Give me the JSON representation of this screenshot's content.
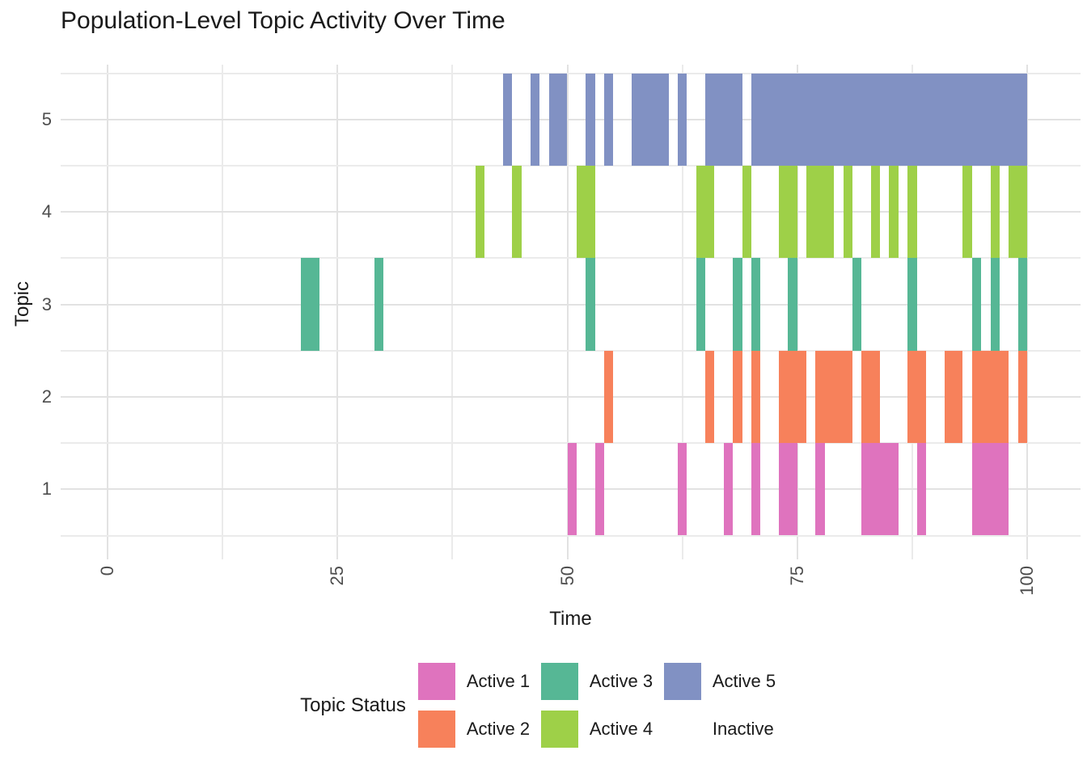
{
  "title": "Population-Level Topic Activity Over Time",
  "x_axis": {
    "label": "Time",
    "ticks": [
      "0",
      "25",
      "50",
      "75",
      "100"
    ]
  },
  "y_axis": {
    "label": "Topic",
    "ticks": [
      "1",
      "2",
      "3",
      "4",
      "5"
    ]
  },
  "legend": {
    "title": "Topic Status",
    "items": [
      {
        "label": "Active 1",
        "color": "#df73be"
      },
      {
        "label": "Active 2",
        "color": "#f7815b"
      },
      {
        "label": "Active 3",
        "color": "#56b795"
      },
      {
        "label": "Active 4",
        "color": "#9ed048"
      },
      {
        "label": "Active 5",
        "color": "#8191c3"
      },
      {
        "label": "Inactive",
        "color": "none"
      }
    ]
  },
  "chart_data": {
    "type": "timeline",
    "title": "Population-Level Topic Activity Over Time",
    "xlabel": "Time",
    "ylabel": "Topic",
    "xlim": [
      0,
      100
    ],
    "x_major_ticks": [
      0,
      25,
      50,
      75,
      100
    ],
    "y_major_ticks": [
      1,
      2,
      3,
      4,
      5
    ],
    "grid": "major and minor, light grey on white",
    "legend_position": "bottom",
    "legend_title": "Topic Status",
    "inactive_label": "Inactive",
    "topics": [
      {
        "topic": 1,
        "status_label": "Active 1",
        "color": "#df73be",
        "active_intervals": [
          [
            50,
            51
          ],
          [
            53,
            54
          ],
          [
            62,
            63
          ],
          [
            67,
            68
          ],
          [
            70,
            71
          ],
          [
            73,
            75
          ],
          [
            77,
            78
          ],
          [
            82,
            86
          ],
          [
            88,
            89
          ],
          [
            94,
            98
          ]
        ]
      },
      {
        "topic": 2,
        "status_label": "Active 2",
        "color": "#f7815b",
        "active_intervals": [
          [
            54,
            55
          ],
          [
            65,
            66
          ],
          [
            68,
            69
          ],
          [
            70,
            71
          ],
          [
            73,
            76
          ],
          [
            77,
            81
          ],
          [
            82,
            84
          ],
          [
            87,
            89
          ],
          [
            91,
            93
          ],
          [
            94,
            98
          ],
          [
            99,
            100
          ]
        ]
      },
      {
        "topic": 3,
        "status_label": "Active 3",
        "color": "#56b795",
        "active_intervals": [
          [
            21,
            23
          ],
          [
            29,
            30
          ],
          [
            52,
            53
          ],
          [
            64,
            65
          ],
          [
            68,
            69
          ],
          [
            70,
            71
          ],
          [
            74,
            75
          ],
          [
            81,
            82
          ],
          [
            87,
            88
          ],
          [
            94,
            95
          ],
          [
            96,
            97
          ],
          [
            99,
            100
          ]
        ]
      },
      {
        "topic": 4,
        "status_label": "Active 4",
        "color": "#9ed048",
        "active_intervals": [
          [
            40,
            41
          ],
          [
            44,
            45
          ],
          [
            51,
            53
          ],
          [
            64,
            66
          ],
          [
            69,
            70
          ],
          [
            73,
            75
          ],
          [
            76,
            79
          ],
          [
            80,
            81
          ],
          [
            83,
            84
          ],
          [
            85,
            86
          ],
          [
            87,
            88
          ],
          [
            93,
            94
          ],
          [
            96,
            97
          ],
          [
            98,
            100
          ]
        ]
      },
      {
        "topic": 5,
        "status_label": "Active 5",
        "color": "#8191c3",
        "active_intervals": [
          [
            43,
            44
          ],
          [
            46,
            47
          ],
          [
            48,
            50
          ],
          [
            52,
            53
          ],
          [
            54,
            55
          ],
          [
            57,
            61
          ],
          [
            62,
            63
          ],
          [
            65,
            69
          ],
          [
            70,
            100
          ]
        ]
      }
    ]
  }
}
